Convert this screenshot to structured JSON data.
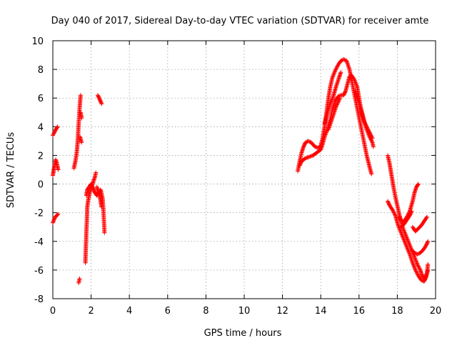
{
  "chart_data": {
    "type": "scatter",
    "title": "Day 040 of 2017, Sidereal Day-to-day VTEC variation (SDTVAR) for receiver amte",
    "xlabel": "GPS time / hours",
    "ylabel": "SDTVAR / TECUs",
    "xlim": [
      0,
      20
    ],
    "ylim": [
      -8,
      10
    ],
    "xticks": [
      0,
      2,
      4,
      6,
      8,
      10,
      12,
      14,
      16,
      18,
      20
    ],
    "yticks": [
      -8,
      -6,
      -4,
      -2,
      0,
      2,
      4,
      6,
      8,
      10
    ],
    "grid": true,
    "marker": "+",
    "color": "#ff0000",
    "series": [
      {
        "name": "SDTVAR",
        "tracks": [
          [
            [
              0.0,
              3.4
            ],
            [
              0.08,
              3.6
            ],
            [
              0.15,
              3.8
            ],
            [
              0.25,
              4.0
            ]
          ],
          [
            [
              0.0,
              0.6
            ],
            [
              0.05,
              1.0
            ],
            [
              0.1,
              1.4
            ],
            [
              0.15,
              1.7
            ],
            [
              0.2,
              1.5
            ],
            [
              0.25,
              1.2
            ],
            [
              0.28,
              1.0
            ]
          ],
          [
            [
              0.0,
              -2.7
            ],
            [
              0.06,
              -2.5
            ],
            [
              0.12,
              -2.3
            ],
            [
              0.2,
              -2.2
            ],
            [
              0.28,
              -2.1
            ]
          ],
          [
            [
              1.1,
              1.1
            ],
            [
              1.18,
              1.6
            ],
            [
              1.25,
              2.2
            ],
            [
              1.3,
              3.0
            ],
            [
              1.35,
              4.2
            ],
            [
              1.4,
              5.3
            ],
            [
              1.45,
              6.2
            ]
          ],
          [
            [
              1.35,
              -6.9
            ],
            [
              1.4,
              -6.6
            ]
          ],
          [
            [
              1.45,
              5.0
            ],
            [
              1.5,
              4.6
            ]
          ],
          [
            [
              1.42,
              3.3
            ],
            [
              1.5,
              2.9
            ]
          ],
          [
            [
              1.7,
              -5.5
            ],
            [
              1.72,
              -4.6
            ],
            [
              1.75,
              -3.4
            ],
            [
              1.78,
              -2.5
            ],
            [
              1.8,
              -1.6
            ],
            [
              1.85,
              -1.1
            ],
            [
              1.9,
              -0.8
            ],
            [
              1.95,
              -0.5
            ],
            [
              2.0,
              -0.3
            ],
            [
              2.1,
              0.1
            ],
            [
              2.2,
              0.5
            ],
            [
              2.25,
              0.8
            ]
          ],
          [
            [
              1.75,
              -0.8
            ],
            [
              1.8,
              -0.4
            ],
            [
              1.9,
              -0.2
            ],
            [
              2.0,
              0.0
            ],
            [
              2.1,
              -0.3
            ],
            [
              2.2,
              -0.6
            ],
            [
              2.3,
              -0.8
            ],
            [
              2.4,
              -0.6
            ],
            [
              2.5,
              -0.4
            ],
            [
              2.6,
              -1.0
            ],
            [
              2.65,
              -2.0
            ],
            [
              2.7,
              -3.4
            ]
          ],
          [
            [
              2.3,
              -0.2
            ],
            [
              2.4,
              -0.6
            ],
            [
              2.5,
              -1.2
            ],
            [
              2.55,
              -1.6
            ]
          ],
          [
            [
              2.35,
              6.2
            ],
            [
              2.45,
              5.9
            ],
            [
              2.55,
              5.6
            ]
          ],
          [
            [
              12.8,
              0.9
            ],
            [
              12.9,
              1.6
            ],
            [
              13.0,
              2.2
            ],
            [
              13.1,
              2.6
            ],
            [
              13.2,
              2.9
            ],
            [
              13.35,
              3.0
            ],
            [
              13.5,
              2.9
            ],
            [
              13.7,
              2.6
            ],
            [
              13.9,
              2.5
            ],
            [
              14.0,
              2.7
            ],
            [
              14.1,
              3.2
            ],
            [
              14.2,
              4.0
            ],
            [
              14.3,
              5.0
            ],
            [
              14.4,
              6.0
            ],
            [
              14.5,
              6.8
            ],
            [
              14.6,
              7.4
            ],
            [
              14.75,
              7.9
            ],
            [
              14.9,
              8.3
            ],
            [
              15.05,
              8.6
            ],
            [
              15.2,
              8.7
            ],
            [
              15.35,
              8.6
            ],
            [
              15.5,
              8.0
            ],
            [
              15.65,
              7.0
            ],
            [
              15.8,
              6.0
            ],
            [
              15.95,
              5.0
            ],
            [
              16.1,
              4.0
            ],
            [
              16.25,
              3.0
            ],
            [
              16.4,
              2.0
            ],
            [
              16.55,
              1.2
            ],
            [
              16.65,
              0.7
            ]
          ],
          [
            [
              12.9,
              1.3
            ],
            [
              13.0,
              1.6
            ],
            [
              13.2,
              1.8
            ],
            [
              13.4,
              1.9
            ],
            [
              13.6,
              2.0
            ],
            [
              13.8,
              2.2
            ],
            [
              14.0,
              2.4
            ],
            [
              14.1,
              2.8
            ],
            [
              14.2,
              3.3
            ],
            [
              14.35,
              3.8
            ],
            [
              14.5,
              4.5
            ],
            [
              14.6,
              5.2
            ],
            [
              14.75,
              5.8
            ],
            [
              14.9,
              6.1
            ],
            [
              15.05,
              6.2
            ],
            [
              15.2,
              6.2
            ],
            [
              15.3,
              6.5
            ],
            [
              15.4,
              7.0
            ],
            [
              15.5,
              7.5
            ],
            [
              15.6,
              7.6
            ],
            [
              15.75,
              7.3
            ],
            [
              15.9,
              6.8
            ],
            [
              16.0,
              6.0
            ],
            [
              16.1,
              5.3
            ],
            [
              16.25,
              4.5
            ],
            [
              16.4,
              3.8
            ],
            [
              16.55,
              3.3
            ],
            [
              16.7,
              2.9
            ],
            [
              16.75,
              2.6
            ]
          ],
          [
            [
              14.2,
              4.2
            ],
            [
              14.35,
              5.0
            ],
            [
              14.5,
              5.6
            ],
            [
              14.65,
              6.1
            ],
            [
              14.8,
              6.8
            ],
            [
              14.95,
              7.4
            ],
            [
              15.05,
              7.8
            ]
          ],
          [
            [
              14.4,
              3.8
            ],
            [
              14.6,
              4.6
            ],
            [
              14.8,
              5.4
            ],
            [
              15.0,
              6.0
            ]
          ],
          [
            [
              15.8,
              6.5
            ],
            [
              15.95,
              5.9
            ],
            [
              16.1,
              5.1
            ],
            [
              16.25,
              4.4
            ],
            [
              16.4,
              4.0
            ],
            [
              16.55,
              3.6
            ],
            [
              16.7,
              3.2
            ]
          ],
          [
            [
              17.5,
              2.0
            ],
            [
              17.6,
              1.4
            ],
            [
              17.7,
              0.6
            ],
            [
              17.8,
              -0.2
            ],
            [
              17.9,
              -0.9
            ],
            [
              18.0,
              -1.5
            ],
            [
              18.1,
              -2.1
            ],
            [
              18.2,
              -2.6
            ],
            [
              18.3,
              -3.1
            ],
            [
              18.45,
              -3.6
            ],
            [
              18.6,
              -4.1
            ],
            [
              18.75,
              -4.6
            ],
            [
              18.9,
              -5.1
            ],
            [
              19.05,
              -5.6
            ],
            [
              19.2,
              -6.0
            ],
            [
              19.3,
              -6.4
            ],
            [
              19.45,
              -6.6
            ],
            [
              19.55,
              -6.2
            ],
            [
              19.6,
              -5.6
            ]
          ],
          [
            [
              17.5,
              -1.2
            ],
            [
              17.6,
              -1.5
            ],
            [
              17.75,
              -1.8
            ],
            [
              17.9,
              -2.2
            ],
            [
              18.05,
              -2.9
            ],
            [
              18.2,
              -3.4
            ],
            [
              18.35,
              -3.9
            ],
            [
              18.5,
              -4.4
            ],
            [
              18.65,
              -4.9
            ],
            [
              18.8,
              -5.5
            ],
            [
              18.95,
              -6.0
            ],
            [
              19.1,
              -6.4
            ],
            [
              19.25,
              -6.7
            ],
            [
              19.4,
              -6.8
            ],
            [
              19.5,
              -6.5
            ],
            [
              19.6,
              -6.0
            ]
          ],
          [
            [
              18.1,
              -2.3
            ],
            [
              18.2,
              -2.6
            ],
            [
              18.35,
              -2.6
            ],
            [
              18.5,
              -2.3
            ],
            [
              18.65,
              -1.9
            ],
            [
              18.8,
              -1.2
            ],
            [
              18.9,
              -0.6
            ],
            [
              19.0,
              -0.2
            ],
            [
              19.1,
              0.0
            ]
          ],
          [
            [
              18.2,
              -3.0
            ],
            [
              18.35,
              -2.8
            ],
            [
              18.5,
              -2.5
            ],
            [
              18.65,
              -2.2
            ],
            [
              18.75,
              -1.9
            ]
          ],
          [
            [
              18.8,
              -3.0
            ],
            [
              18.95,
              -3.3
            ],
            [
              19.1,
              -3.1
            ],
            [
              19.25,
              -2.9
            ],
            [
              19.4,
              -2.6
            ],
            [
              19.55,
              -2.3
            ]
          ],
          [
            [
              18.75,
              -4.6
            ],
            [
              18.9,
              -4.8
            ],
            [
              19.05,
              -4.9
            ],
            [
              19.2,
              -4.8
            ],
            [
              19.35,
              -4.6
            ],
            [
              19.5,
              -4.3
            ],
            [
              19.6,
              -4.0
            ]
          ]
        ]
      }
    ]
  }
}
